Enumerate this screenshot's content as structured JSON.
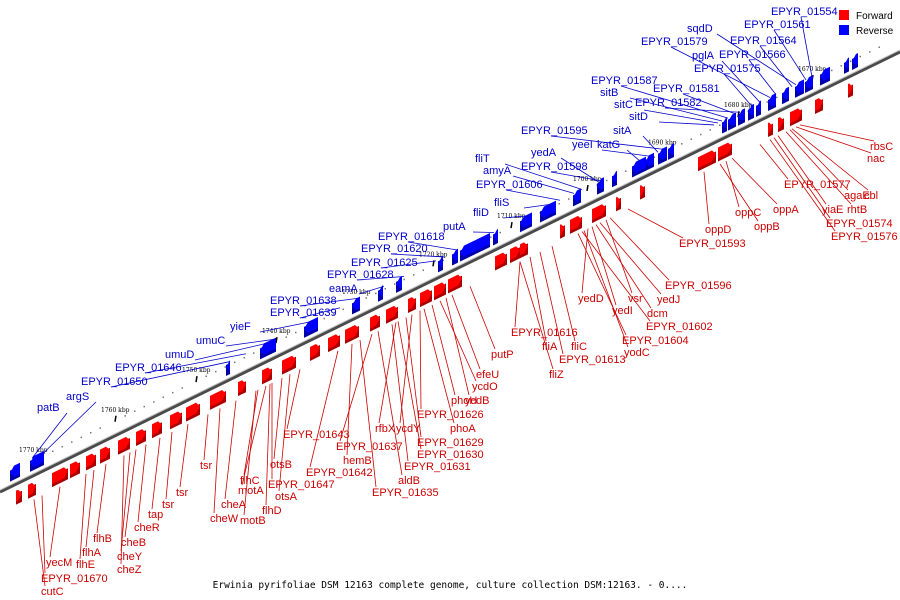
{
  "caption": "Erwinia pyrifoliae DSM 12163 complete genome, culture collection DSM:12163. - 0....",
  "legend": [
    {
      "label": "Forward",
      "color": "#ff0000"
    },
    {
      "label": "Reverse",
      "color": "#0000ff"
    }
  ],
  "colors": {
    "forward": "#ff0000",
    "reverse": "#0000ff",
    "backbone": "#555555"
  },
  "ticks": [
    "1670 kbp",
    "1680 kbp",
    "1690 kbp",
    "1700 kbp",
    "1710 kbp",
    "1720 kbp",
    "1730 kbp",
    "1740 kbp",
    "1750 kbp",
    "1760 kbp",
    "1770 kbp"
  ],
  "forward_genes": [
    "rbsC",
    "nac",
    "EPYR_01577",
    "agaE",
    "cbl",
    "yiaE",
    "rhtB",
    "EPYR_01574",
    "EPYR_01576",
    "oppA",
    "oppC",
    "oppB",
    "oppD",
    "EPYR_01593",
    "EPYR_01596",
    "yedJ",
    "yedD",
    "vsr",
    "dcm",
    "yedI",
    "EPYR_01602",
    "EPYR_01604",
    "yodC",
    "fliC",
    "EPYR_01613",
    "EPYR_01616",
    "fliA",
    "fliZ",
    "putP",
    "efeU",
    "ycdO",
    "ycdB",
    "phoH",
    "phoA",
    "EPYR_01626",
    "ycdY",
    "rfbX",
    "EPYR_01629",
    "EPYR_01630",
    "EPYR_01631",
    "EPYR_01637",
    "EPYR_01643",
    "hemB",
    "aldB",
    "EPYR_01642",
    "EPYR_01635",
    "otsB",
    "flhC",
    "otsA",
    "motA",
    "flhD",
    "EPYR_01647",
    "cheA",
    "motB",
    "cheW",
    "tsr",
    "tsr",
    "tsr",
    "tap",
    "cheR",
    "cheB",
    "cheY",
    "cheZ",
    "flhB",
    "flhA",
    "flhE",
    "yecM",
    "EPYR_01670",
    "cutC"
  ],
  "reverse_genes": [
    "EPYR_01554",
    "EPYR_01561",
    "sqdD",
    "EPYR_01579",
    "EPYR_01564",
    "pglA",
    "EPYR_01566",
    "EPYR_01575",
    "EPYR_01587",
    "EPYR_01581",
    "sitB",
    "sitC",
    "EPYR_01582",
    "sitD",
    "EPYR_01595",
    "sitA",
    "yeeI",
    "katG",
    "yedA",
    "fliT",
    "EPYR_01598",
    "amyA",
    "EPYR_01606",
    "fliS",
    "fliD",
    "putA",
    "EPYR_01618",
    "EPYR_01620",
    "EPYR_01625",
    "EPYR_01628",
    "eamA",
    "EPYR_01638",
    "EPYR_01639",
    "yieF",
    "umuC",
    "umuD",
    "EPYR_01646",
    "EPYR_01650",
    "argS",
    "patB"
  ]
}
